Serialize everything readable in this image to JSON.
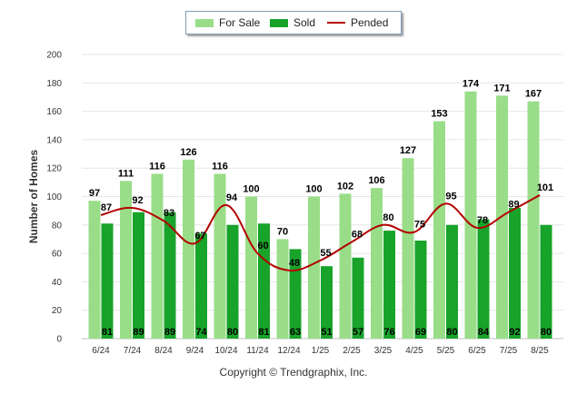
{
  "chart_data": {
    "type": "bar",
    "ylabel": "Number of Homes",
    "xlabel": "",
    "ylim": [
      0,
      200
    ],
    "yticks": [
      0,
      20,
      40,
      60,
      80,
      100,
      120,
      140,
      160,
      180,
      200
    ],
    "categories": [
      "6/24",
      "7/24",
      "8/24",
      "9/24",
      "10/24",
      "11/24",
      "12/24",
      "1/25",
      "2/25",
      "3/25",
      "4/25",
      "5/25",
      "6/25",
      "7/25",
      "8/25"
    ],
    "series": [
      {
        "name": "For Sale",
        "kind": "bar",
        "color": "#99dd88",
        "values": [
          97,
          111,
          116,
          126,
          116,
          100,
          70,
          100,
          102,
          106,
          127,
          153,
          174,
          171,
          167
        ]
      },
      {
        "name": "Sold",
        "kind": "bar",
        "color": "#18a32a",
        "values": [
          81,
          89,
          89,
          74,
          80,
          81,
          63,
          51,
          57,
          76,
          69,
          80,
          84,
          92,
          80
        ]
      },
      {
        "name": "Pended",
        "kind": "line",
        "color": "#b30000",
        "values": [
          87,
          92,
          83,
          67,
          94,
          60,
          48,
          55,
          68,
          80,
          75,
          95,
          78,
          89,
          101
        ]
      }
    ],
    "legend_position": "top-center",
    "grid": true
  },
  "footer": "Copyright © Trendgraphix, Inc."
}
